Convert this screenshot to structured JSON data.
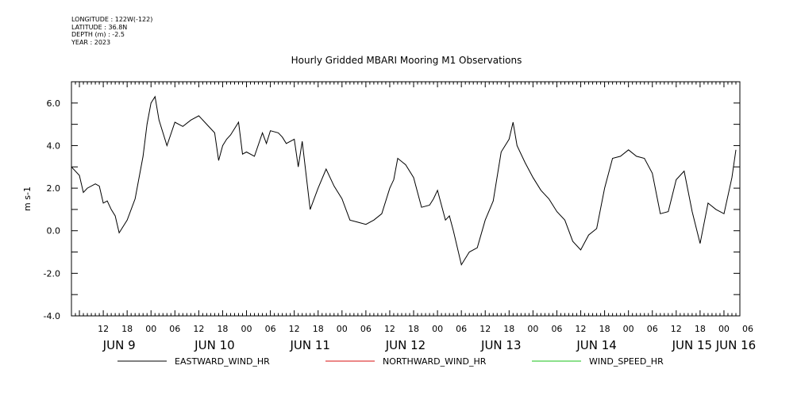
{
  "meta": {
    "longitude": "LONGITUDE : 122W(-122)",
    "latitude": "LATITUDE : 36.8N",
    "depth": "DEPTH (m) : -2.5",
    "year": "YEAR : 2023"
  },
  "chart_data": {
    "type": "line",
    "title": "Hourly Gridded MBARI Mooring M1 Observations",
    "ylabel": "m s-1",
    "xlabel": "",
    "ylim": [
      -4.0,
      7.0
    ],
    "xlim_hours": [
      0,
      168
    ],
    "x_start": "JUN 9 04:00",
    "x_unit": "hours",
    "y_ticks": [
      -4.0,
      -2.0,
      0.0,
      2.0,
      4.0,
      6.0
    ],
    "y_tick_labels": [
      "-4.0",
      "-2.0",
      "0.0",
      "2.0",
      "4.0",
      "6.0"
    ],
    "x_hour_labels": [
      "12",
      "18",
      "00",
      "06",
      "12",
      "18",
      "00",
      "06",
      "12",
      "18",
      "00",
      "06",
      "12",
      "18",
      "00",
      "06",
      "12",
      "18",
      "00",
      "06",
      "12",
      "18",
      "00",
      "06",
      "12",
      "18",
      "00",
      "06"
    ],
    "day_labels": [
      {
        "label": "JUN  9",
        "hour": 12
      },
      {
        "label": "JUN 10",
        "hour": 36
      },
      {
        "label": "JUN 11",
        "hour": 60
      },
      {
        "label": "JUN 12",
        "hour": 84
      },
      {
        "label": "JUN 13",
        "hour": 108
      },
      {
        "label": "JUN 14",
        "hour": 132
      },
      {
        "label": "JUN 15",
        "hour": 156
      },
      {
        "label": "JUN 16",
        "hour": 167
      }
    ],
    "series": [
      {
        "name": "EASTWARD_WIND_HR",
        "color": "#000000",
        "x": [
          0,
          2,
          3,
          4,
          6,
          7,
          8,
          9,
          10,
          11,
          12,
          14,
          16,
          18,
          19,
          20,
          21,
          22,
          24,
          26,
          28,
          30,
          32,
          34,
          36,
          37,
          38,
          39,
          40,
          42,
          43,
          44,
          46,
          48,
          49,
          50,
          52,
          53,
          54,
          56,
          57,
          58,
          60,
          62,
          64,
          66,
          68,
          69,
          70,
          72,
          74,
          76,
          78,
          80,
          81,
          82,
          84,
          86,
          88,
          90,
          91,
          92,
          94,
          95,
          96,
          98,
          100,
          102,
          104,
          106,
          108,
          110,
          111,
          112,
          114,
          116,
          118,
          120,
          122,
          124,
          126,
          128,
          130,
          132,
          134,
          136,
          138,
          140,
          142,
          144,
          146,
          148,
          150,
          152,
          154,
          156,
          158,
          160,
          162,
          164,
          166,
          167
        ],
        "y": [
          3.0,
          2.6,
          1.8,
          2.0,
          2.2,
          2.1,
          1.3,
          1.4,
          1.0,
          0.7,
          -0.1,
          0.5,
          1.5,
          3.5,
          5.0,
          6.0,
          6.3,
          5.2,
          4.0,
          5.1,
          4.9,
          5.2,
          5.4,
          5.0,
          4.6,
          3.3,
          4.0,
          4.3,
          4.5,
          5.1,
          3.6,
          3.7,
          3.5,
          4.6,
          4.1,
          4.7,
          4.6,
          4.4,
          4.1,
          4.3,
          3.0,
          4.2,
          1.0,
          2.0,
          2.9,
          2.1,
          1.5,
          1.0,
          0.5,
          0.4,
          0.3,
          0.5,
          0.8,
          2.0,
          2.4,
          3.4,
          3.1,
          2.5,
          1.1,
          1.2,
          1.5,
          1.9,
          0.5,
          0.7,
          0.0,
          -1.6,
          -1.0,
          -0.8,
          0.5,
          1.4,
          3.7,
          4.3,
          5.1,
          4.0,
          3.2,
          2.5,
          1.9,
          1.5,
          0.9,
          0.5,
          -0.5,
          -0.9,
          -0.2,
          0.1,
          2.0,
          3.4,
          3.5,
          3.8,
          3.5,
          3.4,
          2.7,
          0.8,
          0.9,
          2.4,
          2.8,
          0.9,
          -0.6,
          1.3,
          1.0,
          0.8,
          2.5,
          3.8
        ],
        "values_note": "approximate readings; trailing points continue below"
      },
      {
        "name": "NORTHWARD_WIND_HR",
        "color": "#d81010",
        "values_note": "approximate readings"
      },
      {
        "name": "WIND_SPEED_HR",
        "color": "#18c018",
        "values_note": "approximate readings"
      }
    ],
    "legend_position": "bottom"
  }
}
